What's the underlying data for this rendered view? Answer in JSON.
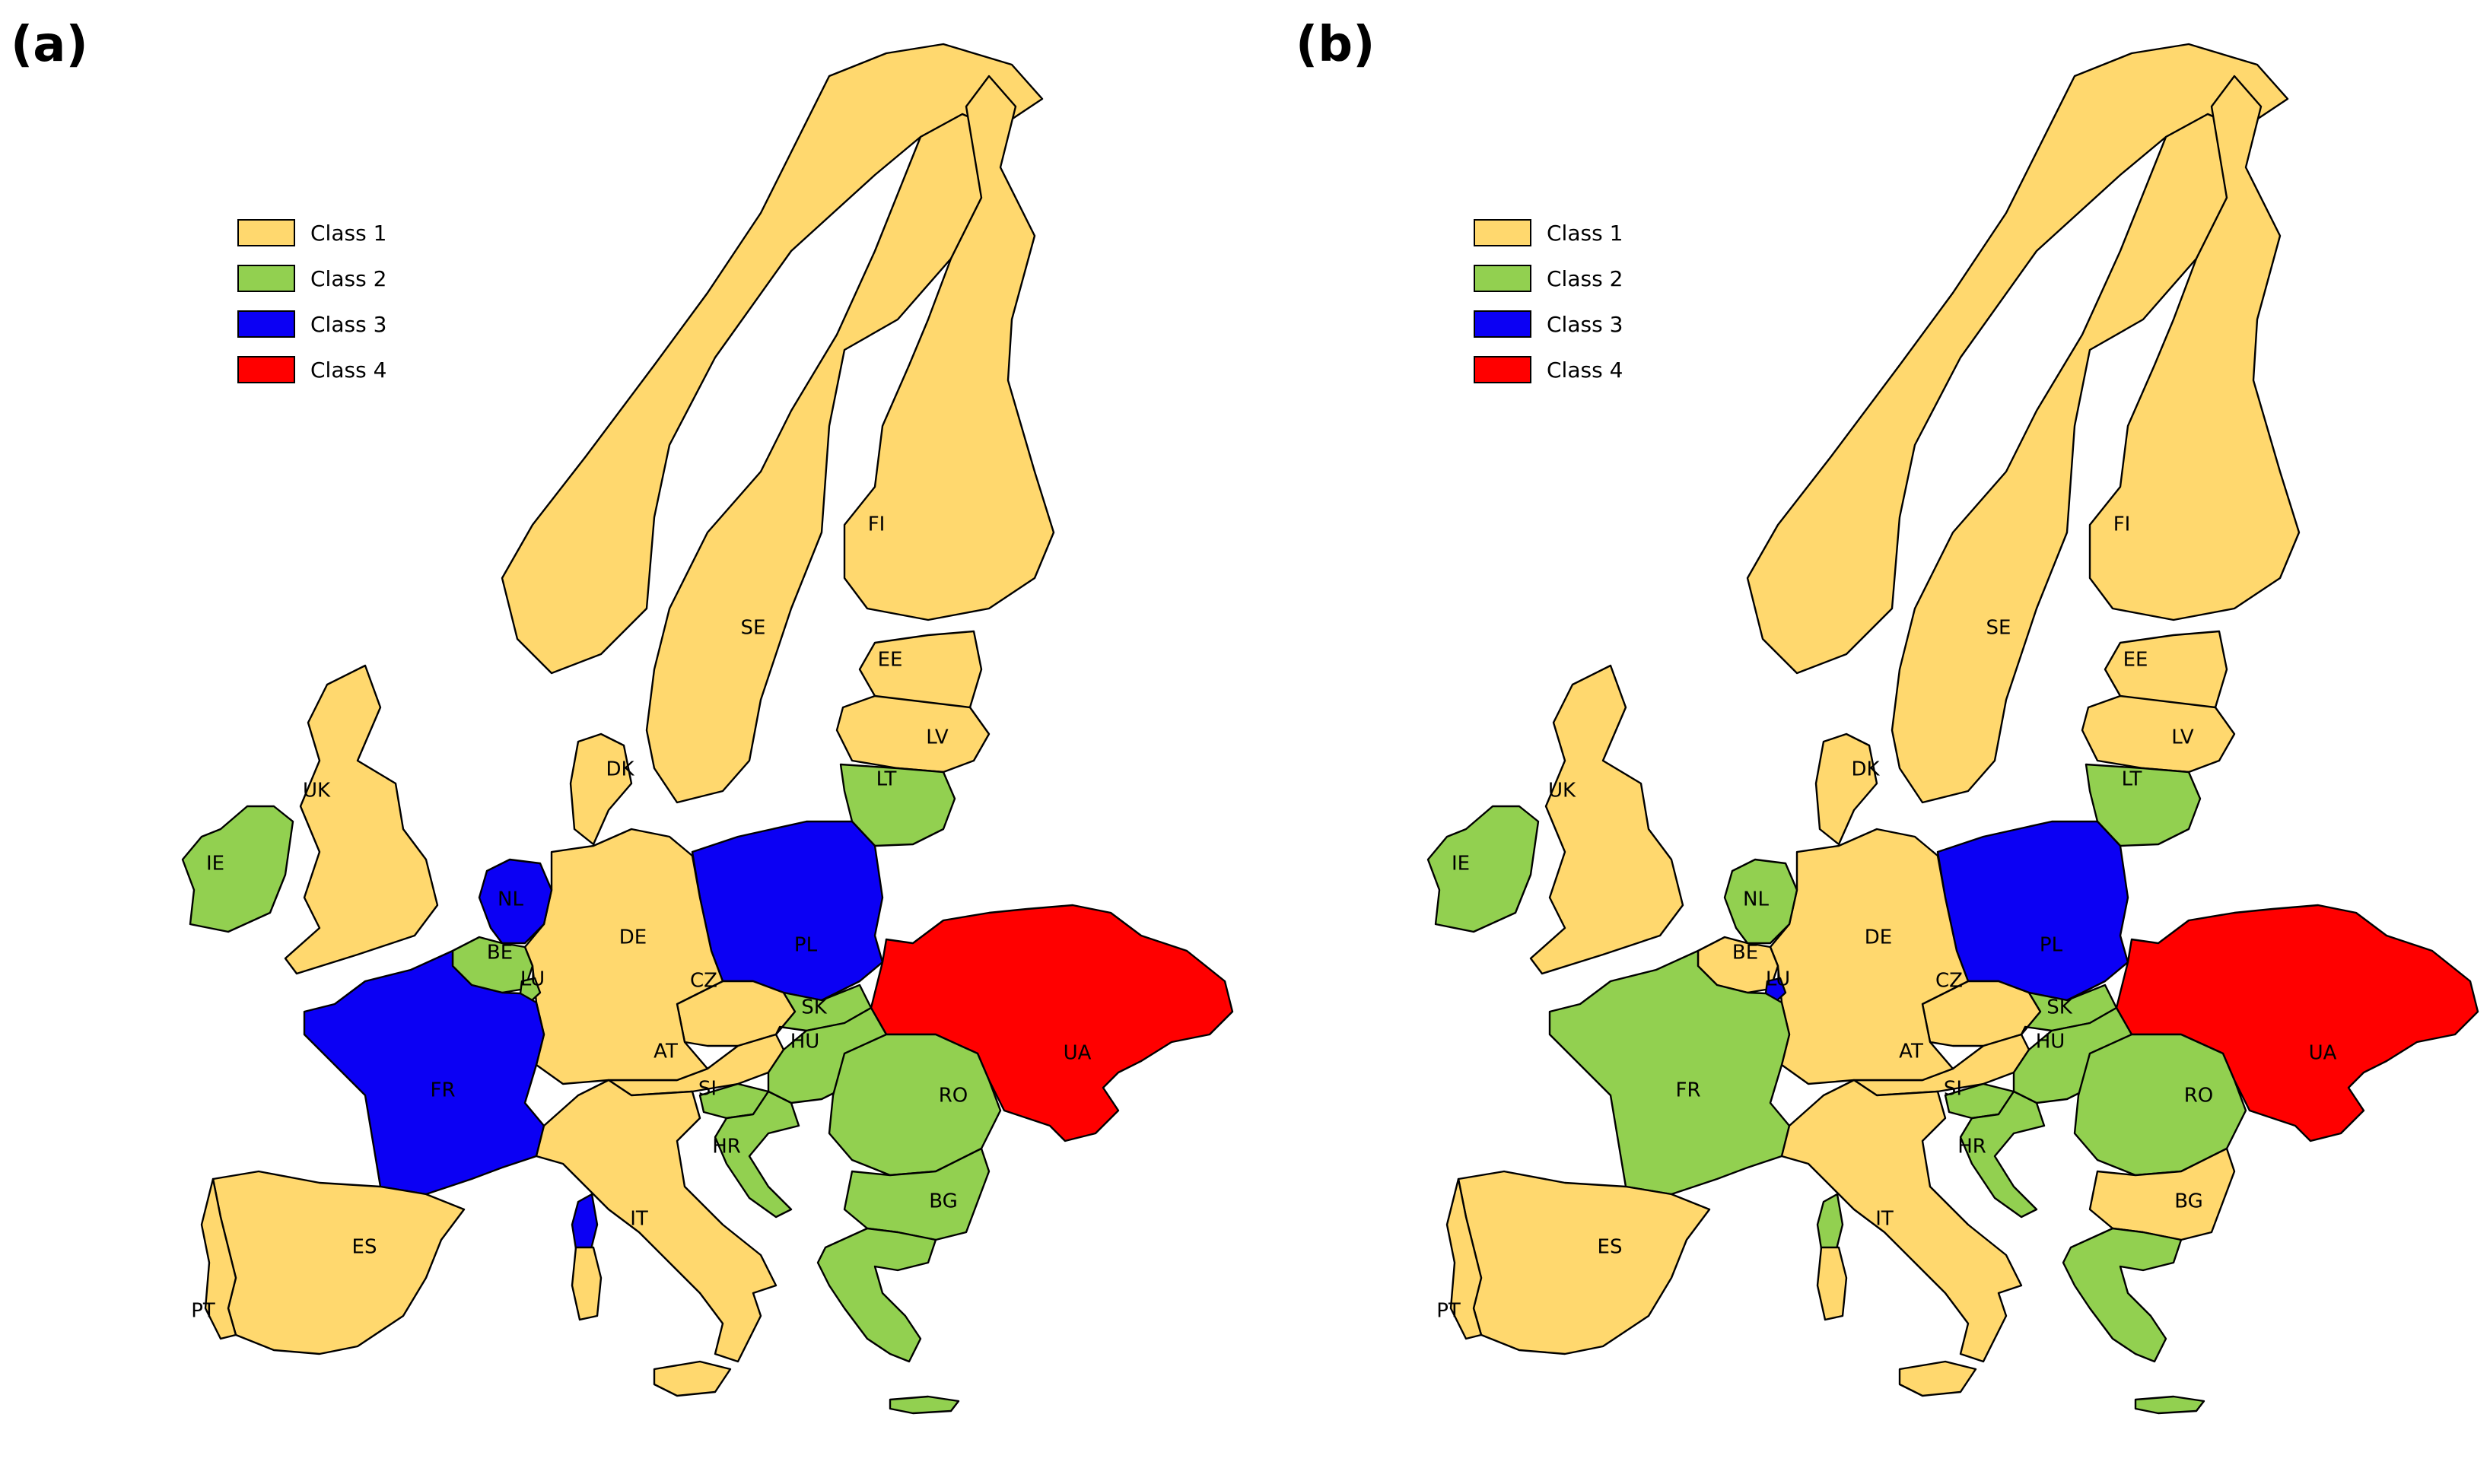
{
  "colors": {
    "class_1": "#FFD86E",
    "class_2": "#92D050",
    "class_3": "#0B00F4",
    "class_4": "#FF0000"
  },
  "legend": [
    {
      "label": "Class 1",
      "class": "1"
    },
    {
      "label": "Class 2",
      "class": "2"
    },
    {
      "label": "Class 3",
      "class": "3"
    },
    {
      "label": "Class 4",
      "class": "4"
    }
  ],
  "panels": [
    {
      "label": "(a)",
      "countries": {
        "NO": {
          "label": "",
          "class": "1"
        },
        "SE": {
          "label": "SE",
          "class": "1"
        },
        "FI": {
          "label": "FI",
          "class": "1"
        },
        "EE": {
          "label": "EE",
          "class": "1"
        },
        "LV": {
          "label": "LV",
          "class": "1"
        },
        "LT": {
          "label": "LT",
          "class": "2"
        },
        "UK": {
          "label": "UK",
          "class": "1"
        },
        "IE": {
          "label": "IE",
          "class": "2"
        },
        "DK": {
          "label": "DK",
          "class": "1"
        },
        "NL": {
          "label": "NL",
          "class": "3"
        },
        "BE": {
          "label": "BE",
          "class": "2"
        },
        "LU": {
          "label": "LU",
          "class": "2"
        },
        "DE": {
          "label": "DE",
          "class": "1"
        },
        "PL": {
          "label": "PL",
          "class": "3"
        },
        "CZ": {
          "label": "CZ",
          "class": "1"
        },
        "SK": {
          "label": "SK",
          "class": "2"
        },
        "AT": {
          "label": "AT",
          "class": "1"
        },
        "HU": {
          "label": "HU",
          "class": "2"
        },
        "SI": {
          "label": "SI",
          "class": "2"
        },
        "HR": {
          "label": "HR",
          "class": "2"
        },
        "RO": {
          "label": "RO",
          "class": "2"
        },
        "BG": {
          "label": "BG",
          "class": "2"
        },
        "GR": {
          "label": "",
          "class": "2"
        },
        "UA": {
          "label": "UA",
          "class": "4"
        },
        "FR": {
          "label": "FR",
          "class": "3"
        },
        "ES": {
          "label": "ES",
          "class": "1"
        },
        "PT": {
          "label": "PT",
          "class": "1"
        },
        "IT": {
          "label": "IT",
          "class": "1"
        },
        "SARDINIA": {
          "label": "",
          "class": "3"
        },
        "CORSICA": {
          "label": "",
          "class": "1"
        },
        "SICILY": {
          "label": "",
          "class": "1"
        },
        "CRETE": {
          "label": "",
          "class": "2"
        }
      }
    },
    {
      "label": "(b)",
      "countries": {
        "NO": {
          "label": "",
          "class": "1"
        },
        "SE": {
          "label": "SE",
          "class": "1"
        },
        "FI": {
          "label": "FI",
          "class": "1"
        },
        "EE": {
          "label": "EE",
          "class": "1"
        },
        "LV": {
          "label": "LV",
          "class": "1"
        },
        "LT": {
          "label": "LT",
          "class": "2"
        },
        "UK": {
          "label": "UK",
          "class": "1"
        },
        "IE": {
          "label": "IE",
          "class": "2"
        },
        "DK": {
          "label": "DK",
          "class": "1"
        },
        "NL": {
          "label": "NL",
          "class": "2"
        },
        "BE": {
          "label": "BE",
          "class": "1"
        },
        "LU": {
          "label": "LU",
          "class": "3"
        },
        "DE": {
          "label": "DE",
          "class": "1"
        },
        "PL": {
          "label": "PL",
          "class": "3"
        },
        "CZ": {
          "label": "CZ",
          "class": "1"
        },
        "SK": {
          "label": "SK",
          "class": "2"
        },
        "AT": {
          "label": "AT",
          "class": "1"
        },
        "HU": {
          "label": "HU",
          "class": "2"
        },
        "SI": {
          "label": "SI",
          "class": "2"
        },
        "HR": {
          "label": "HR",
          "class": "2"
        },
        "RO": {
          "label": "RO",
          "class": "2"
        },
        "BG": {
          "label": "BG",
          "class": "1"
        },
        "GR": {
          "label": "",
          "class": "2"
        },
        "UA": {
          "label": "UA",
          "class": "4"
        },
        "FR": {
          "label": "FR",
          "class": "2"
        },
        "ES": {
          "label": "ES",
          "class": "1"
        },
        "PT": {
          "label": "PT",
          "class": "1"
        },
        "IT": {
          "label": "IT",
          "class": "1"
        },
        "SARDINIA": {
          "label": "",
          "class": "2"
        },
        "CORSICA": {
          "label": "",
          "class": "1"
        },
        "SICILY": {
          "label": "",
          "class": "1"
        },
        "CRETE": {
          "label": "",
          "class": "2"
        }
      }
    }
  ]
}
